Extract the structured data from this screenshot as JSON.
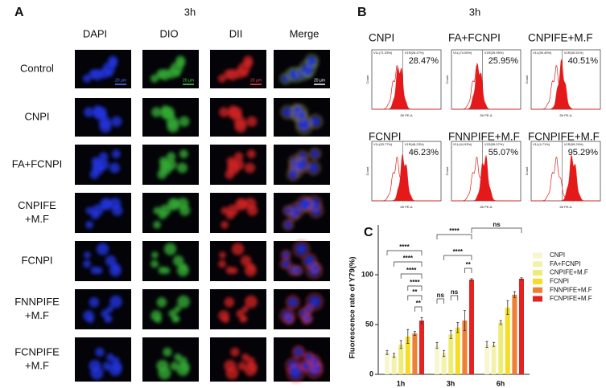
{
  "panel_a": {
    "label": "A",
    "time": "3h",
    "columns": [
      "DAPI",
      "DIO",
      "DII",
      "Merge"
    ],
    "rows": [
      [
        "Control"
      ],
      [
        "CNPI"
      ],
      [
        "FA+FCNPI"
      ],
      [
        "CNPIFE",
        "+M.F"
      ],
      [
        "FCNPI"
      ],
      [
        "FNNPIFE",
        "+M.F"
      ],
      [
        "FCNPIFE",
        "+M.F"
      ]
    ],
    "scale_bar": "20 μm"
  },
  "panel_b": {
    "label": "B",
    "time": "3h",
    "y_label": "Count",
    "x_label": "Dil PE-A",
    "plots": [
      {
        "title": "CNPI",
        "gate_left": "V1L(71.53%)",
        "gate_right": "V1R(28.47%)",
        "percent": "28.47%"
      },
      {
        "title": "FA+FCNPI",
        "gate_left": "V1L(74.05%)",
        "gate_right": "V1R(25.95%)",
        "percent": "25.95%"
      },
      {
        "title": "CNPIFE+M.F",
        "gate_left": "V1L(59.49%)",
        "gate_right": "V1R(40.51%)",
        "percent": "40.51%"
      },
      {
        "title": "FCNPI",
        "gate_left": "V1L(53.77%)",
        "gate_right": "V1R(46.23%)",
        "percent": "46.23%"
      },
      {
        "title": "FNNPIFE+M.F",
        "gate_left": "V1L(44.93%)",
        "gate_right": "V1R(55.07%)",
        "percent": "55.07%"
      },
      {
        "title": "FCNPIFE+M.F",
        "gate_left": "V1L(4.71%)",
        "gate_right": "V1R(95.29%)",
        "percent": "95.29%"
      }
    ]
  },
  "chart_data": {
    "type": "bar",
    "panel_label": "C",
    "y_label": "Fluorescence rate of Y79(%)",
    "categories": [
      "1h",
      "3h",
      "6h"
    ],
    "ylim": [
      0,
      150
    ],
    "yticks": [
      0,
      50,
      100
    ],
    "series": [
      {
        "name": "CNPI",
        "color": "#f8f6d0",
        "values": [
          22,
          29,
          30
        ],
        "errors": [
          2,
          3,
          3
        ]
      },
      {
        "name": "FA+FCNPI",
        "color": "#f4f2a8",
        "values": [
          19,
          21,
          30
        ],
        "errors": [
          2,
          3,
          2
        ]
      },
      {
        "name": "CNPIFE+M.F",
        "color": "#eeec78",
        "values": [
          30,
          40,
          52
        ],
        "errors": [
          4,
          4,
          2
        ]
      },
      {
        "name": "FCNPI",
        "color": "#f6dc22",
        "values": [
          38,
          47,
          67
        ],
        "errors": [
          7,
          5,
          7
        ]
      },
      {
        "name": "FNNPIFE+M.F",
        "color": "#ee7f33",
        "values": [
          41,
          54,
          80
        ],
        "errors": [
          2,
          10,
          3
        ]
      },
      {
        "name": "FCNPIFE+M.F",
        "color": "#e42222",
        "values": [
          54,
          95,
          96
        ],
        "errors": [
          3,
          1,
          1
        ]
      }
    ],
    "annotations": [
      "****",
      "****",
      "****",
      "****",
      "**",
      "**",
      "****",
      "****",
      "**",
      "ns",
      "ns",
      "ns"
    ]
  }
}
